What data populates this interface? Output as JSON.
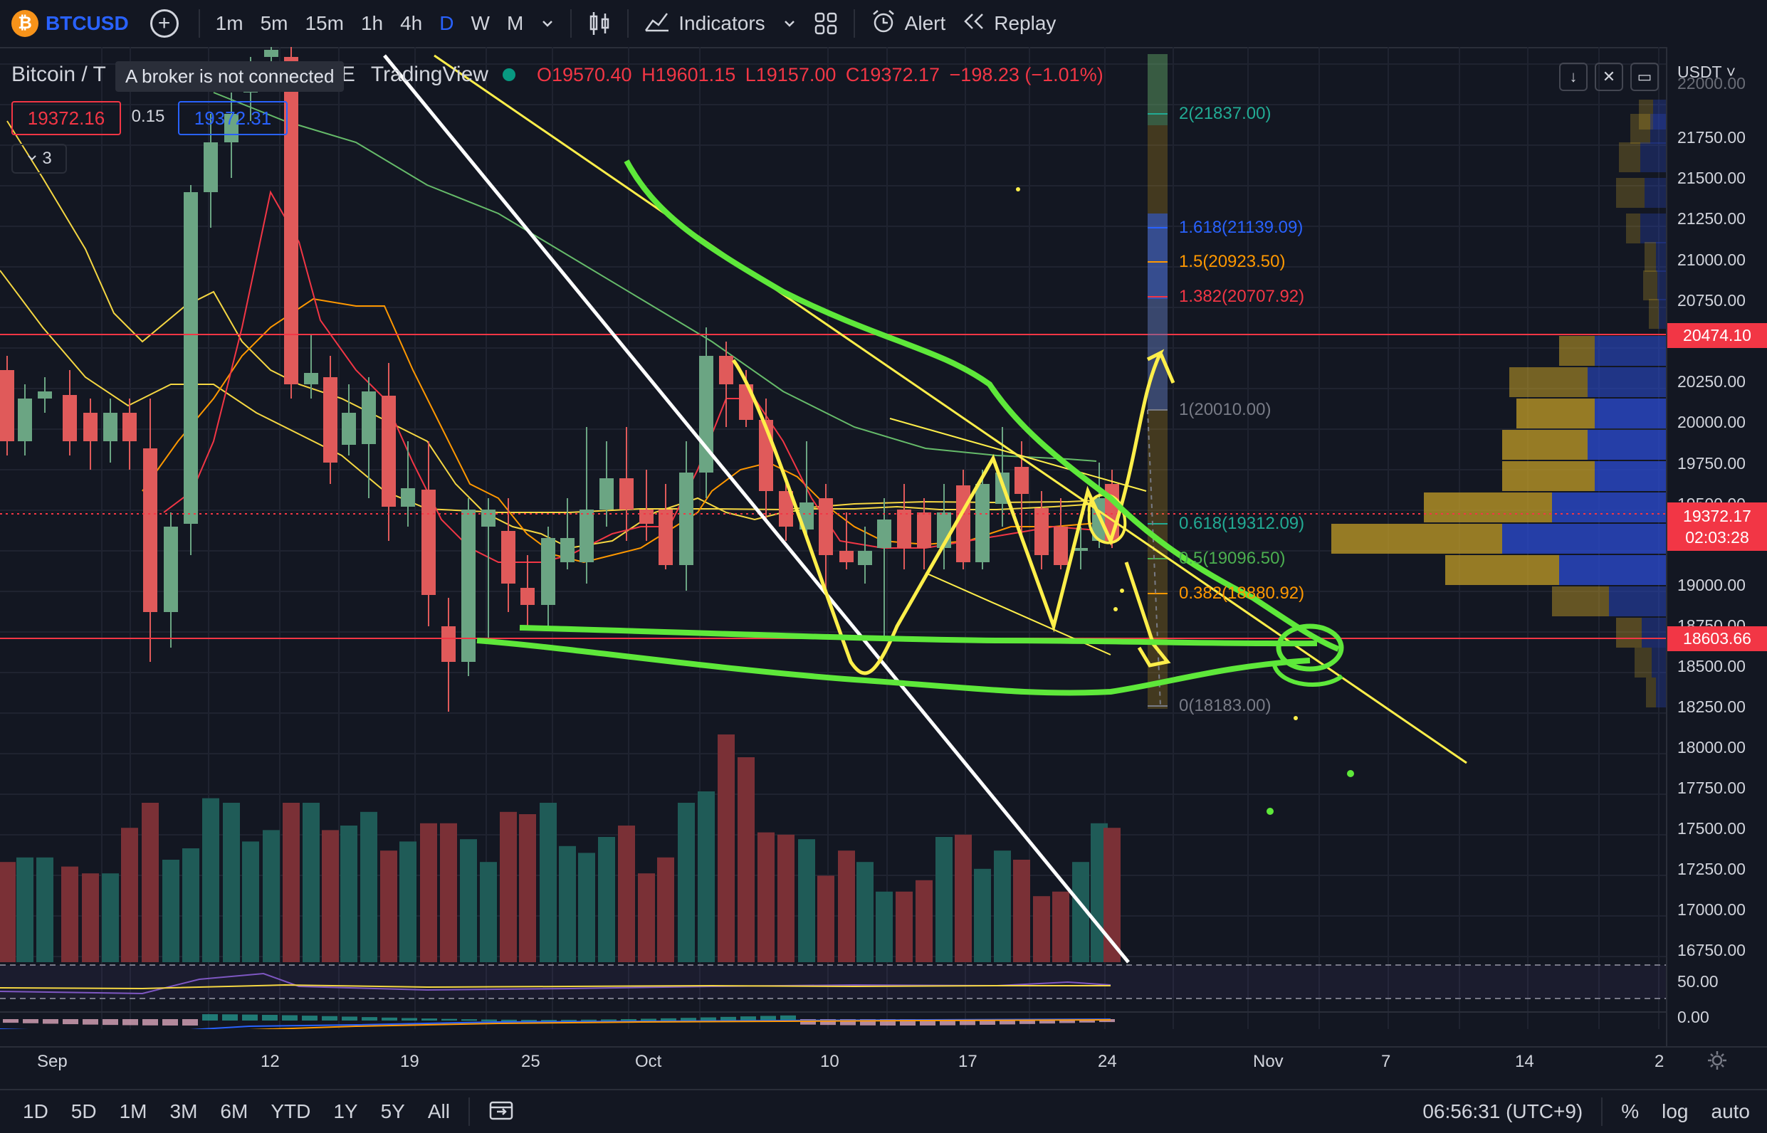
{
  "toolbar": {
    "symbol": "BTCUSD",
    "logo": "₿",
    "intervals": [
      "1m",
      "5m",
      "15m",
      "1h",
      "4h",
      "D",
      "W",
      "M"
    ],
    "active_interval": "D",
    "indicators_label": "Indicators",
    "alert_label": "Alert",
    "replay_label": "Replay",
    "icons": [
      "plus-icon",
      "chevron-down-icon",
      "candles-icon",
      "indicators-icon",
      "layouts-icon",
      "alarm-icon",
      "replay-icon"
    ]
  },
  "legend": {
    "title_left": "Bitcoin / T",
    "title_mid": "E",
    "exchange": "TradingView",
    "tooltip": "A broker is not connected",
    "open": "O19570.40",
    "high": "H19601.15",
    "low": "L19157.00",
    "close": "C19372.17",
    "change": "−198.23 (−1.01%)",
    "bid": "19372.16",
    "spread": "0.15",
    "ask": "19372.31",
    "collapse_count": "3"
  },
  "currency": "USDT",
  "price_axis": {
    "labels": [
      "22000.00",
      "21750.00",
      "21500.00",
      "21250.00",
      "21000.00",
      "20750.00",
      "20250.00",
      "20000.00",
      "19750.00",
      "19500.00",
      "19000.00",
      "18750.00",
      "18500.00",
      "18250.00",
      "18000.00",
      "17750.00",
      "17500.00",
      "17250.00",
      "17000.00",
      "16750.00"
    ],
    "tag_high": "20474.10",
    "tag_last": "19372.17",
    "tag_countdown": "02:03:28",
    "tag_low": "18603.66",
    "osc_labels": [
      "50.00",
      "0.00"
    ]
  },
  "fib_levels": [
    {
      "label": "2(21837.00)",
      "color": "#22ab94"
    },
    {
      "label": "1.618(21139.09)",
      "color": "#2962ff"
    },
    {
      "label": "1.5(20923.50)",
      "color": "#ff9800"
    },
    {
      "label": "1.382(20707.92)",
      "color": "#f23645"
    },
    {
      "label": "1(20010.00)",
      "color": "#787b86"
    },
    {
      "label": "0.618(19312.09)",
      "color": "#22ab94"
    },
    {
      "label": "0.5(19096.50)",
      "color": "#4caf50"
    },
    {
      "label": "0.382(18880.92)",
      "color": "#ff9800"
    },
    {
      "label": "0(18183.00)",
      "color": "#787b86"
    }
  ],
  "time_axis": [
    "Sep",
    "12",
    "19",
    "25",
    "Oct",
    "10",
    "17",
    "24",
    "Nov",
    "7",
    "14",
    "2"
  ],
  "bottom": {
    "ranges": [
      "1D",
      "5D",
      "1M",
      "3M",
      "6M",
      "YTD",
      "1Y",
      "5Y",
      "All"
    ],
    "clock": "06:56:31 (UTC+9)",
    "percent": "%",
    "log": "log",
    "auto": "auto"
  },
  "colors": {
    "background": "#131722",
    "up": "#6ba583",
    "down": "#e05a5a",
    "accent": "#2962ff",
    "annotation_green": "#5ee83a",
    "annotation_yellow": "#ffef4a"
  }
}
